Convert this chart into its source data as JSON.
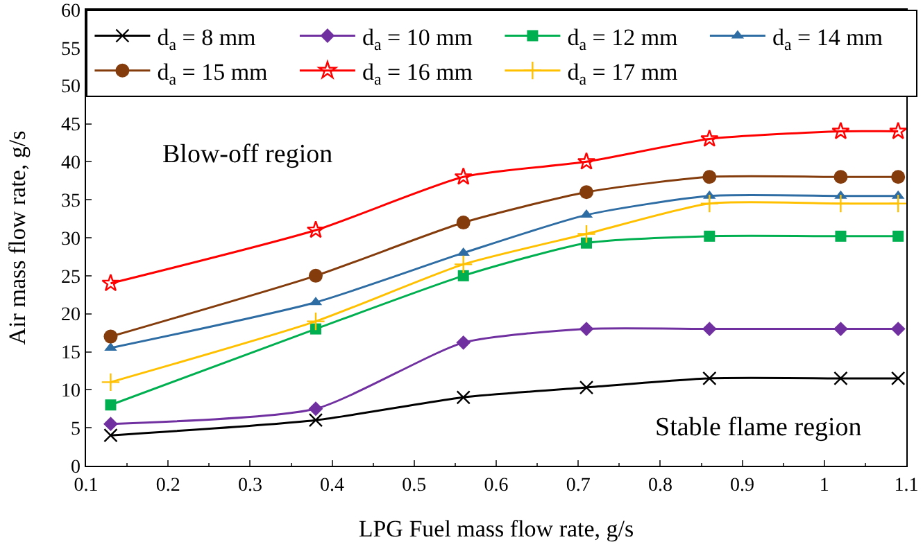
{
  "chart_data": {
    "type": "line",
    "xlabel": "LPG Fuel mass flow rate, g/s",
    "ylabel": "Air mass flow rate, g/s",
    "x": [
      0.13,
      0.38,
      0.56,
      0.71,
      0.86,
      1.02,
      1.09
    ],
    "series": [
      {
        "name": "d$_{a}$ = 8 mm",
        "color": "#000000",
        "marker": "cross",
        "values": [
          4,
          6,
          9,
          10.3,
          11.5,
          11.5,
          11.5
        ]
      },
      {
        "name": "d$_{a}$ = 10 mm",
        "color": "#7030a0",
        "marker": "diamond",
        "values": [
          5.5,
          7.5,
          16.2,
          18,
          18,
          18,
          18
        ]
      },
      {
        "name": "d$_{a}$ = 12 mm",
        "color": "#00b050",
        "marker": "square",
        "values": [
          8,
          18,
          25,
          29.3,
          30.2,
          30.2,
          30.2
        ]
      },
      {
        "name": "d$_{a}$ = 14 mm",
        "color": "#2e6ca4",
        "marker": "triangle",
        "values": [
          15.5,
          21.5,
          28,
          33,
          35.5,
          35.5,
          35.5
        ]
      },
      {
        "name": "d$_{a}$ = 15 mm",
        "color": "#843c0c",
        "marker": "circle",
        "values": [
          17,
          25,
          32,
          36,
          38,
          38,
          38
        ]
      },
      {
        "name": "d$_{a}$ = 16 mm",
        "color": "#ff0000",
        "marker": "star",
        "values": [
          24,
          31,
          38,
          40,
          43,
          44,
          44
        ]
      },
      {
        "name": "d$_{a}$ = 17 mm",
        "color": "#ffc000",
        "marker": "plus",
        "values": [
          11,
          19,
          26.5,
          30.5,
          34.5,
          34.5,
          34.5
        ]
      }
    ],
    "xlim": [
      0.1,
      1.1
    ],
    "xticks": [
      0.1,
      0.2,
      0.3,
      0.4,
      0.5,
      0.6,
      0.7,
      0.8,
      0.9,
      1,
      1.1
    ],
    "ylim": [
      0,
      60
    ],
    "yticks": [
      0,
      5,
      10,
      15,
      20,
      25,
      30,
      35,
      40,
      45,
      50,
      55,
      60
    ],
    "annotations": [
      "Blow-off region",
      "Stable flame region"
    ],
    "grid": false,
    "legend": "top"
  }
}
